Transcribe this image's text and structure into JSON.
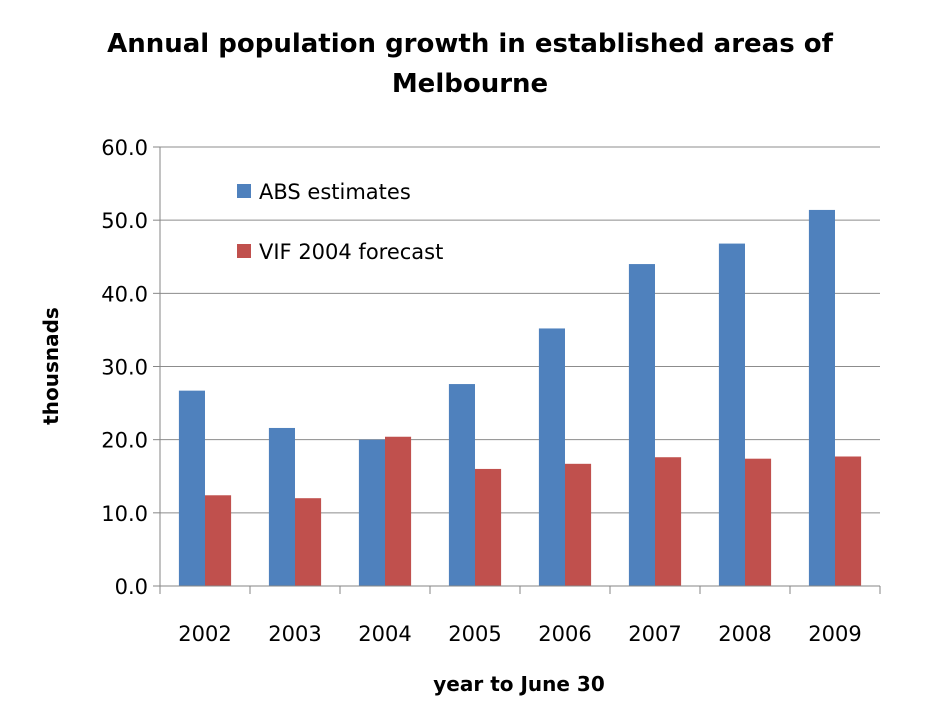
{
  "chart_data": {
    "type": "bar",
    "title_lines": [
      "Annual population growth in established areas of",
      "Melbourne"
    ],
    "xlabel": "year to June 30",
    "ylabel": "thousnads",
    "categories": [
      "2002",
      "2003",
      "2004",
      "2005",
      "2006",
      "2007",
      "2008",
      "2009"
    ],
    "series": [
      {
        "name": "ABS estimates",
        "color": "#4f81bd",
        "values": [
          26.7,
          21.6,
          20.0,
          27.6,
          35.2,
          44.0,
          46.8,
          51.4
        ]
      },
      {
        "name": "VIF 2004 forecast",
        "color": "#c0504d",
        "values": [
          12.4,
          12.0,
          20.4,
          16.0,
          16.7,
          17.6,
          17.4,
          17.7
        ]
      }
    ],
    "yticks": [
      "0.0",
      "10.0",
      "20.0",
      "30.0",
      "40.0",
      "50.0",
      "60.0"
    ],
    "ylim": [
      0,
      60
    ],
    "grid": true,
    "legend_position": "top-left inside plot"
  }
}
